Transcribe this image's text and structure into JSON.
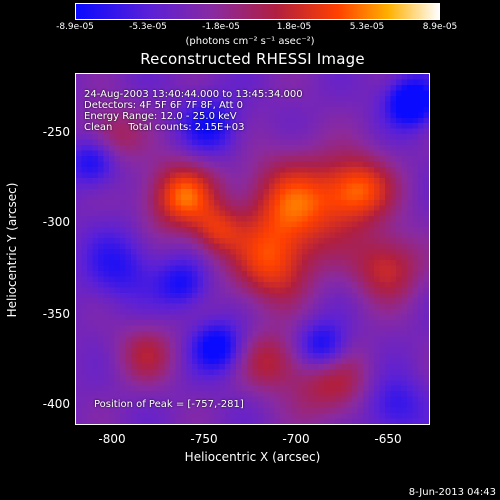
{
  "colorbar": {
    "ticks": [
      "-8.9e-05",
      "-5.3e-05",
      "-1.8e-05",
      "1.8e-05",
      "5.3e-05",
      "8.9e-05"
    ],
    "units": "(photons cm⁻² s⁻¹ asec⁻²)",
    "min": -8.9e-05,
    "max": 8.9e-05
  },
  "chart_data": {
    "type": "heatmap",
    "title": "Reconstructed RHESSI Image",
    "xlabel": "Heliocentric X (arcsec)",
    "ylabel": "Heliocentric Y (arcsec)",
    "xlim": [
      -819,
      -627
    ],
    "ylim": [
      -410,
      -220
    ],
    "xticks": [
      "-800",
      "-750",
      "-700",
      "-650"
    ],
    "yticks": [
      "-250",
      "-300",
      "-350",
      "-400"
    ],
    "xtick_values": [
      -800,
      -750,
      -700,
      -650
    ],
    "ytick_values": [
      -250,
      -300,
      -350,
      -400
    ],
    "annotations": [
      "24-Aug-2003 13:40:44.000 to 13:45:34.000",
      "Detectors: 4F 5F 6F 7F 8F, Att 0",
      "Energy Range: 12.0 - 25.0 keV",
      "Clean     Total counts: 2.15E+03"
    ],
    "peak_label": "Position of Peak = [-757,-281]",
    "peak": [
      -757,
      -281
    ]
  },
  "footer": {
    "date": "8-Jun-2013 04:43"
  }
}
